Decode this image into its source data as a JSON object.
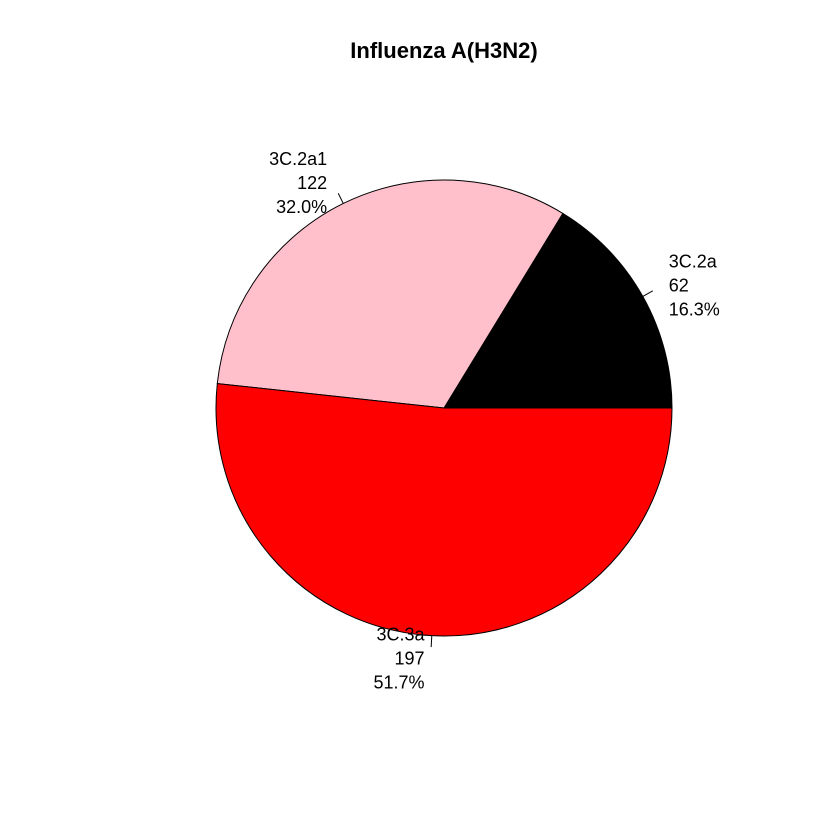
{
  "chart_data": {
    "type": "pie",
    "title": "Influenza A(H3N2)",
    "slices": [
      {
        "label": "3C.2a",
        "value": 62,
        "percent": "16.3%",
        "color": "#000000"
      },
      {
        "label": "3C.2a1",
        "value": 122,
        "percent": "32.0%",
        "color": "#ffc0cb"
      },
      {
        "label": "3C.3a",
        "value": 197,
        "percent": "51.7%",
        "color": "#ff0000"
      }
    ]
  }
}
